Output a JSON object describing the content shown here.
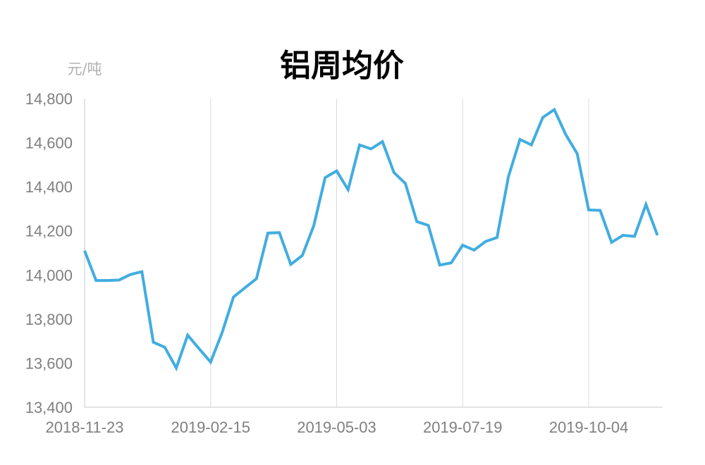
{
  "chart_data": {
    "type": "line",
    "title": "铝周均价",
    "ylabel": "元/吨",
    "xlabel": "",
    "ylim": [
      13400,
      14800
    ],
    "yticks": [
      13400,
      13600,
      13800,
      14000,
      14200,
      14400,
      14600,
      14800
    ],
    "ytick_labels": [
      "13,400",
      "13,600",
      "13,800",
      "14,000",
      "14,200",
      "14,400",
      "14,600",
      "14,800"
    ],
    "xtick_labels": [
      "2018-11-23",
      "2019-02-15",
      "2019-05-03",
      "2019-07-19",
      "2019-10-04"
    ],
    "xtick_index": [
      0,
      11,
      22,
      33,
      44
    ],
    "grid": "vertical",
    "line_color": "#41ade0",
    "series": [
      {
        "name": "",
        "values": [
          14110,
          13975,
          13975,
          13977,
          14002,
          14015,
          13695,
          13672,
          13578,
          13727,
          13665,
          13605,
          13738,
          13900,
          13942,
          13983,
          14190,
          14192,
          14048,
          14088,
          14223,
          14442,
          14472,
          14387,
          14590,
          14572,
          14605,
          14465,
          14415,
          14242,
          14225,
          14045,
          14055,
          14135,
          14113,
          14152,
          14170,
          14447,
          14615,
          14590,
          14715,
          14750,
          14637,
          14550,
          14295,
          14293,
          14148,
          14180,
          14175,
          14320,
          14180
        ]
      }
    ]
  }
}
